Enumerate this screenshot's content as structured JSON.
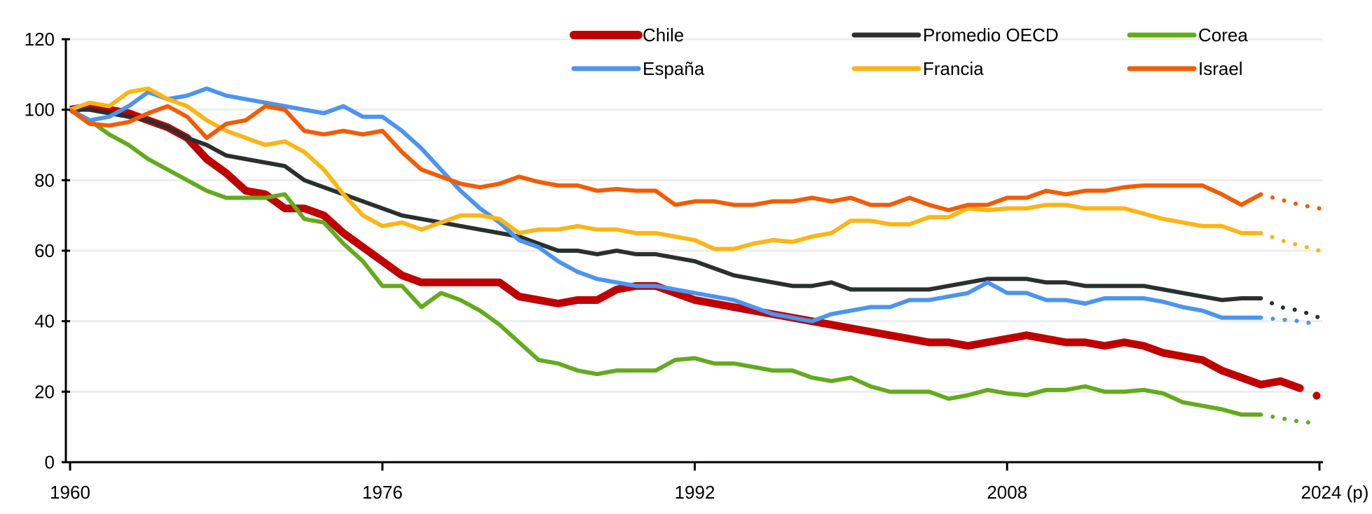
{
  "chart_data": {
    "type": "line",
    "title": "",
    "xlabel": "",
    "ylabel": "",
    "ylim": [
      0,
      120
    ],
    "xlim": [
      1960,
      2024
    ],
    "yticks": [
      0,
      20,
      40,
      60,
      80,
      100,
      120
    ],
    "xticks": [
      "1960",
      "1976",
      "1992",
      "2008",
      "2024 (p)"
    ],
    "grid": "horizontal",
    "legend_position": "top-right",
    "x_start": 1960,
    "series": [
      {
        "name": "Chile",
        "color": "#c00000",
        "projected_from": 2023,
        "values": [
          100,
          101,
          100,
          99,
          97,
          95,
          92,
          86,
          82,
          77,
          76,
          72,
          72,
          70,
          65,
          61,
          57,
          53,
          51,
          51,
          51,
          51,
          51,
          47,
          46,
          45,
          46,
          46,
          49,
          50,
          50,
          48,
          46,
          45,
          44,
          43,
          42,
          41,
          40,
          39,
          38,
          37,
          36,
          35,
          34,
          34,
          33,
          34,
          35,
          36,
          35,
          34,
          34,
          33,
          34,
          33,
          31,
          30,
          29,
          26,
          24,
          22,
          23,
          21,
          18.5
        ]
      },
      {
        "name": "Promedio OECD",
        "color": "#29302f",
        "projected_from": 2021,
        "values": [
          100,
          100,
          99,
          98,
          97,
          95,
          92,
          90,
          87,
          86,
          85,
          84,
          80,
          78,
          76,
          74,
          72,
          70,
          69,
          68,
          67,
          66,
          65,
          64,
          62,
          60,
          60,
          59,
          60,
          59,
          59,
          58,
          57,
          55,
          53,
          52,
          51,
          50,
          50,
          51,
          49,
          49,
          49,
          49,
          49,
          50,
          51,
          52,
          52,
          52,
          51,
          51,
          50,
          50,
          50,
          50,
          49,
          48,
          47,
          46,
          46.5,
          46.5,
          44,
          43,
          41
        ]
      },
      {
        "name": "Corea",
        "color": "#63ab1c",
        "projected_from": 2021,
        "values": [
          100,
          97,
          93,
          90,
          86,
          83,
          80,
          77,
          75,
          75,
          75,
          76,
          69,
          68,
          62,
          57,
          50,
          50,
          44,
          48,
          46,
          43,
          39,
          34,
          29,
          28,
          26,
          25,
          26,
          26,
          26,
          29,
          29.5,
          28,
          28,
          27,
          26,
          26,
          24,
          23,
          24,
          21.5,
          20,
          20,
          20,
          18,
          19,
          20.5,
          19.5,
          19,
          20.5,
          20.5,
          21.5,
          20,
          20,
          20.5,
          19.5,
          17,
          16,
          15,
          13.5,
          13.5,
          12.5,
          11.5,
          11
        ]
      },
      {
        "name": "España",
        "color": "#4c94ef",
        "projected_from": 2021,
        "values": [
          100,
          97,
          98,
          101,
          105,
          103,
          104,
          106,
          104,
          103,
          102,
          101,
          100,
          99,
          101,
          98,
          98,
          94,
          89,
          83,
          77,
          72,
          68,
          63,
          61,
          57,
          54,
          52,
          51,
          50,
          50,
          49,
          48,
          47,
          46,
          44,
          42,
          41,
          40,
          42,
          43,
          44,
          44,
          46,
          46,
          47,
          48,
          51,
          48,
          48,
          46,
          46,
          45,
          46.5,
          46.5,
          46.5,
          45.5,
          44,
          43,
          41,
          41,
          41,
          40.5,
          40,
          39
        ]
      },
      {
        "name": "Francia",
        "color": "#fdb515",
        "projected_from": 2021,
        "values": [
          100,
          102,
          101,
          105,
          106,
          103,
          101,
          97,
          94,
          92,
          90,
          91,
          88,
          83,
          76,
          70,
          67,
          68,
          66,
          68,
          70,
          70,
          69,
          65,
          66,
          66,
          67,
          66,
          66,
          65,
          65,
          64,
          63,
          60.5,
          60.5,
          62,
          63,
          62.5,
          64,
          65,
          68.5,
          68.5,
          67.5,
          67.5,
          69.5,
          69.5,
          72,
          71.5,
          72,
          72,
          73,
          73,
          72,
          72,
          72,
          70.5,
          69,
          68,
          67,
          67,
          65,
          65,
          63,
          61.5,
          60
        ]
      },
      {
        "name": "Israel",
        "color": "#f25c05",
        "projected_from": 2021,
        "values": [
          100,
          96,
          95.5,
          96.5,
          99,
          101,
          98,
          92,
          96,
          97,
          101,
          100,
          94,
          93,
          94,
          93,
          94,
          88,
          83,
          81,
          79,
          78,
          79,
          81,
          79.5,
          78.5,
          78.5,
          77,
          77.5,
          77,
          77,
          73,
          74,
          74,
          73,
          73,
          74,
          74,
          75,
          74,
          75,
          73,
          73,
          75,
          73,
          71.5,
          73,
          73,
          75,
          75,
          77,
          76,
          77,
          77,
          78,
          78.5,
          78.5,
          78.5,
          78.5,
          76,
          73,
          76,
          74.5,
          73,
          72
        ]
      }
    ]
  }
}
